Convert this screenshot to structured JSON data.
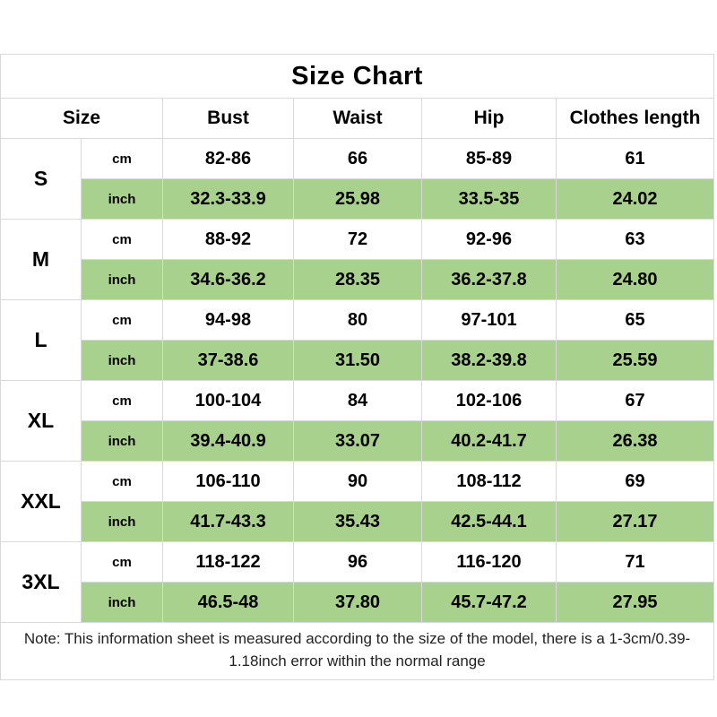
{
  "note": "Note: This information sheet is measured according to the size of the model, there is a 1-3cm/0.39-1.18inch error within the normal range",
  "colors": {
    "highlight_green": "#a9d18e",
    "grid_border": "#d9d9d9",
    "text": "#000000"
  },
  "chart_data": {
    "type": "table",
    "title": "Size Chart",
    "columns": [
      "Size",
      "Bust",
      "Waist",
      "Hip",
      "Clothes length"
    ],
    "unit_labels": [
      "cm",
      "inch"
    ],
    "rows": [
      {
        "size": "S",
        "cm": [
          "82-86",
          "66",
          "85-89",
          "61"
        ],
        "inch": [
          "32.3-33.9",
          "25.98",
          "33.5-35",
          "24.02"
        ]
      },
      {
        "size": "M",
        "cm": [
          "88-92",
          "72",
          "92-96",
          "63"
        ],
        "inch": [
          "34.6-36.2",
          "28.35",
          "36.2-37.8",
          "24.80"
        ]
      },
      {
        "size": "L",
        "cm": [
          "94-98",
          "80",
          "97-101",
          "65"
        ],
        "inch": [
          "37-38.6",
          "31.50",
          "38.2-39.8",
          "25.59"
        ]
      },
      {
        "size": "XL",
        "cm": [
          "100-104",
          "84",
          "102-106",
          "67"
        ],
        "inch": [
          "39.4-40.9",
          "33.07",
          "40.2-41.7",
          "26.38"
        ]
      },
      {
        "size": "XXL",
        "cm": [
          "106-110",
          "90",
          "108-112",
          "69"
        ],
        "inch": [
          "41.7-43.3",
          "35.43",
          "42.5-44.1",
          "27.17"
        ]
      },
      {
        "size": "3XL",
        "cm": [
          "118-122",
          "96",
          "116-120",
          "71"
        ],
        "inch": [
          "46.5-48",
          "37.80",
          "45.7-47.2",
          "27.95"
        ]
      }
    ]
  }
}
